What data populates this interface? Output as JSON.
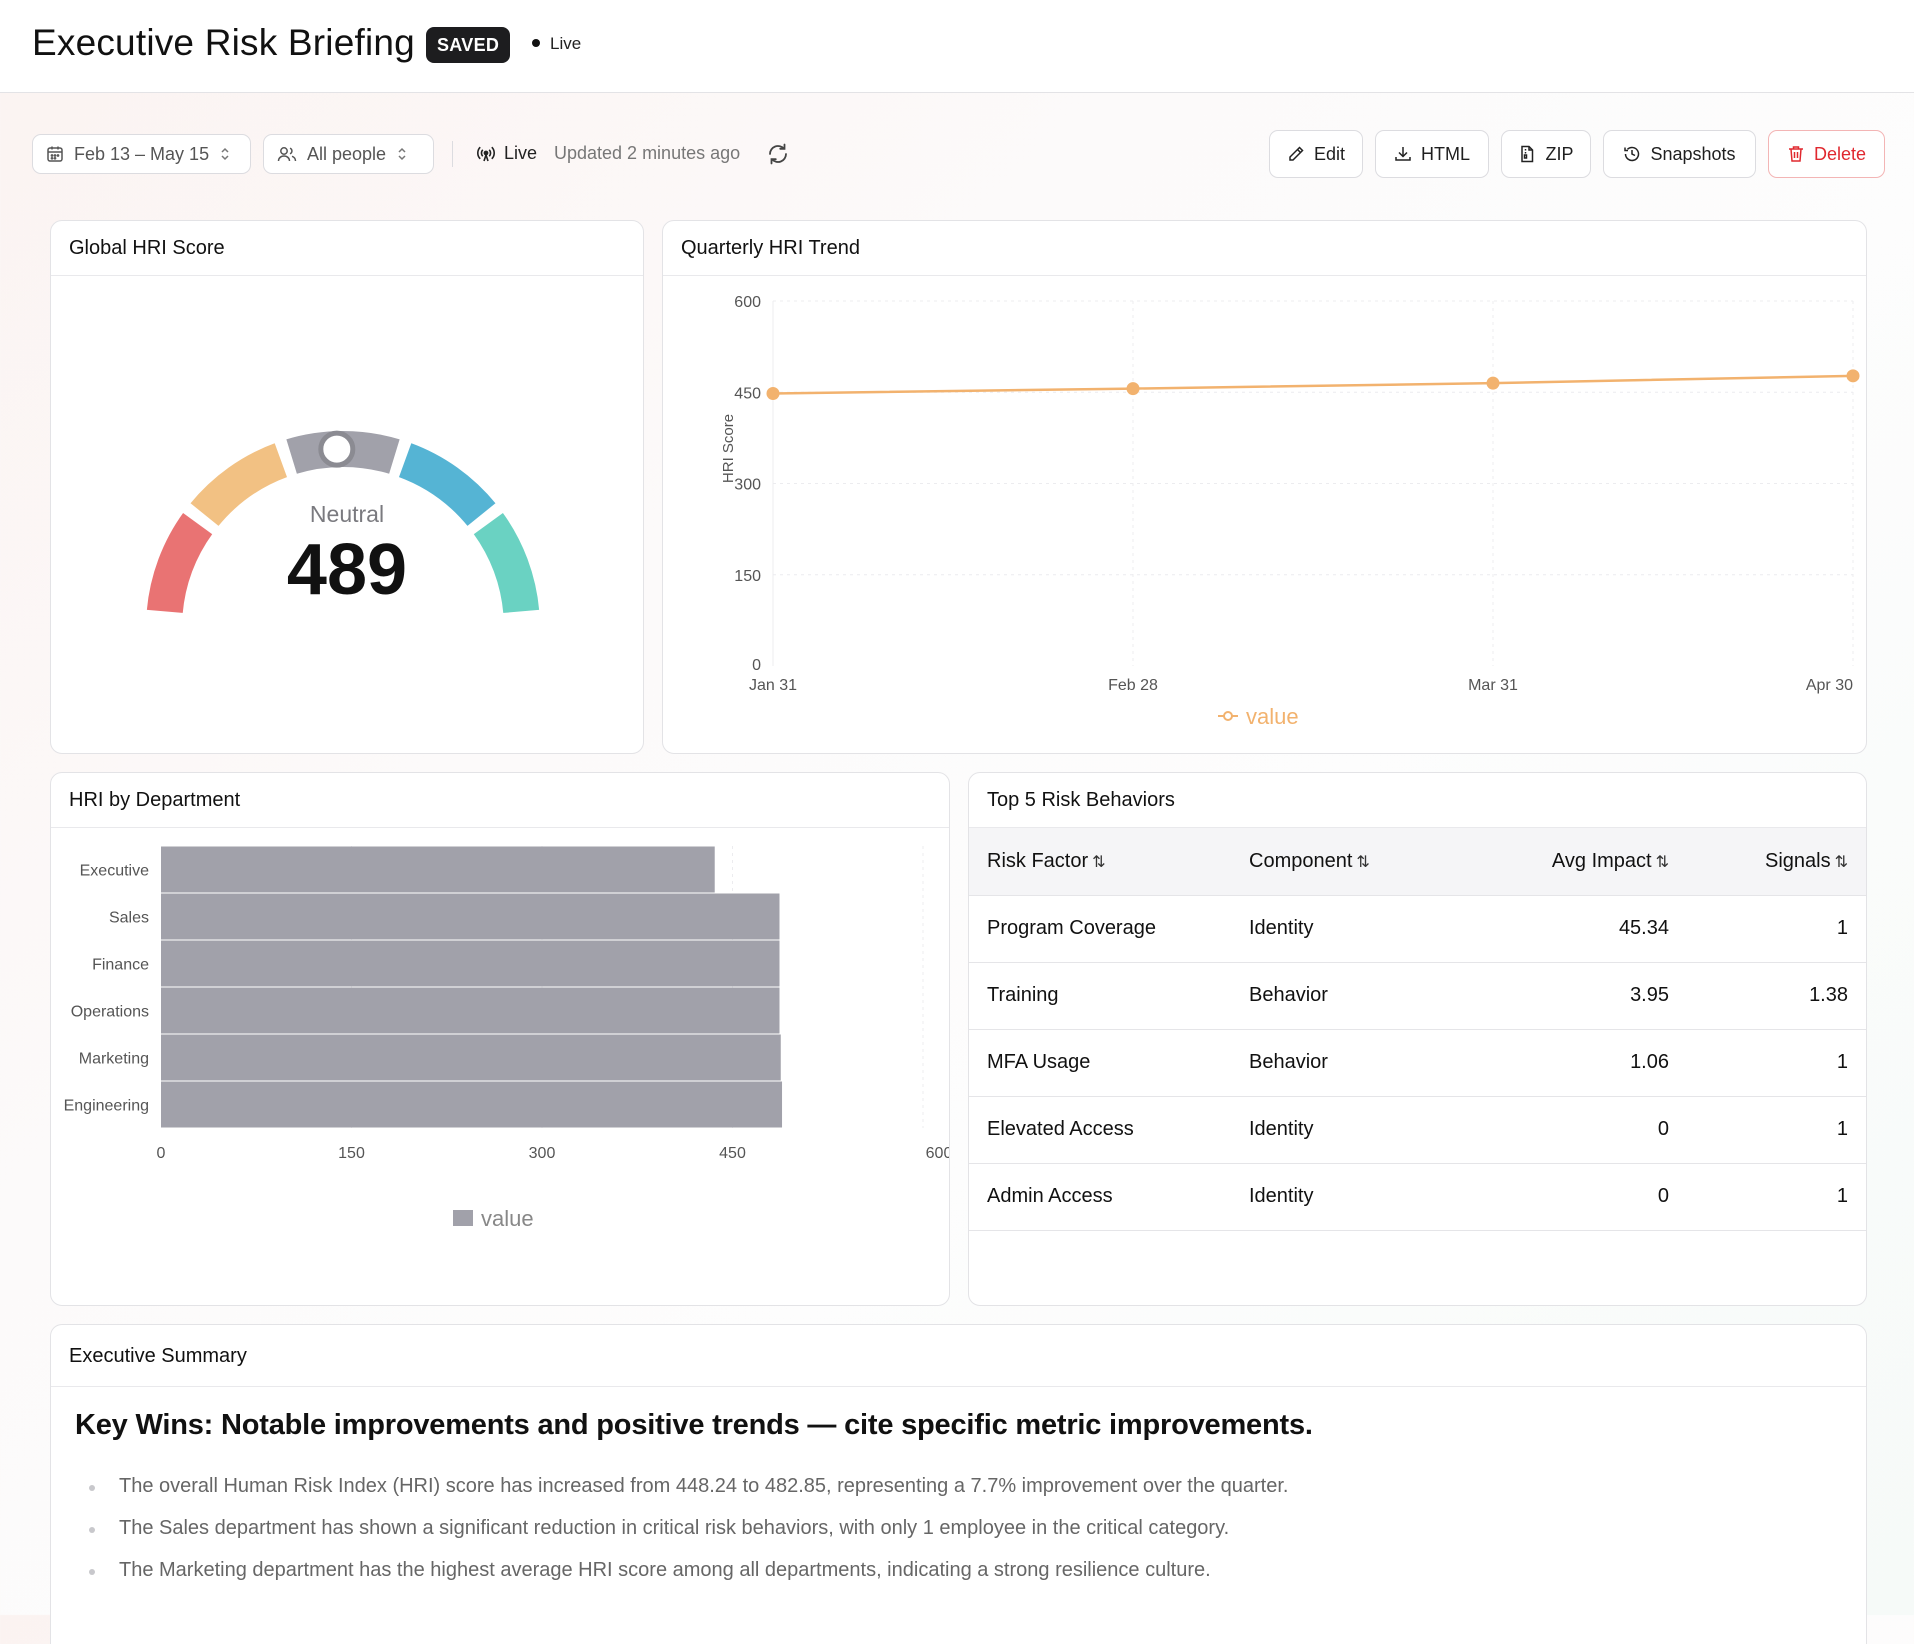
{
  "header": {
    "title": "Executive Risk Briefing",
    "saved_badge": "SAVED",
    "live_label": "Live"
  },
  "toolbar": {
    "date_range": "Feb 13 – May 15",
    "people_filter": "All people",
    "live_label": "Live",
    "updated_text": "Updated 2 minutes ago",
    "buttons": {
      "edit": "Edit",
      "html": "HTML",
      "zip": "ZIP",
      "snapshots": "Snapshots",
      "delete": "Delete"
    }
  },
  "gauge_card": {
    "title": "Global HRI Score",
    "status": "Neutral",
    "score": "489",
    "segment_colors": [
      "#e97373",
      "#f2c183",
      "#a1a1aa",
      "#55b4d4",
      "#6ad2c2"
    ]
  },
  "trend_card": {
    "title": "Quarterly HRI Trend"
  },
  "dept_card": {
    "title": "HRI by Department"
  },
  "risk_card": {
    "title": "Top 5 Risk Behaviors",
    "columns": [
      "Risk Factor",
      "Component",
      "Avg Impact",
      "Signals"
    ],
    "sort_glyph": "⇅",
    "rows": [
      [
        "Program Coverage",
        "Identity",
        "45.34",
        "1"
      ],
      [
        "Training",
        "Behavior",
        "3.95",
        "1.38"
      ],
      [
        "MFA Usage",
        "Behavior",
        "1.06",
        "1"
      ],
      [
        "Elevated Access",
        "Identity",
        "0",
        "1"
      ],
      [
        "Admin Access",
        "Identity",
        "0",
        "1"
      ]
    ]
  },
  "summary_card": {
    "title": "Executive Summary",
    "heading": "Key Wins: Notable improvements and positive trends — cite specific metric improvements.",
    "bullets": [
      "The overall Human Risk Index (HRI) score has increased from 448.24 to 482.85, representing a 7.7% improvement over the quarter.",
      "The Sales department has shown a significant reduction in critical risk behaviors, with only 1 employee in the critical category.",
      "The Marketing department has the highest average HRI score among all departments, indicating a strong resilience culture."
    ]
  },
  "chart_data": [
    {
      "type": "line",
      "x": [
        "Jan 31",
        "Feb 28",
        "Mar 31",
        "Apr 30"
      ],
      "series": [
        {
          "name": "value",
          "values": [
            448,
            456,
            465,
            477
          ]
        }
      ],
      "ylabel": "HRI Score",
      "ylim": [
        0,
        600
      ],
      "yticks": [
        "0",
        "150",
        "300",
        "450",
        "600"
      ],
      "color": "#f2b26e",
      "grid": true,
      "legend": "bottom"
    },
    {
      "type": "bar",
      "orientation": "horizontal",
      "categories": [
        "Executive",
        "Sales",
        "Finance",
        "Operations",
        "Marketing",
        "Engineering"
      ],
      "series": [
        {
          "name": "value",
          "values": [
            436,
            487,
            487,
            487,
            488,
            489
          ]
        }
      ],
      "xlim": [
        0,
        600
      ],
      "xticks": [
        "0",
        "150",
        "300",
        "450",
        "600"
      ],
      "color": "#a1a1aa",
      "grid": true,
      "legend": "bottom"
    }
  ]
}
